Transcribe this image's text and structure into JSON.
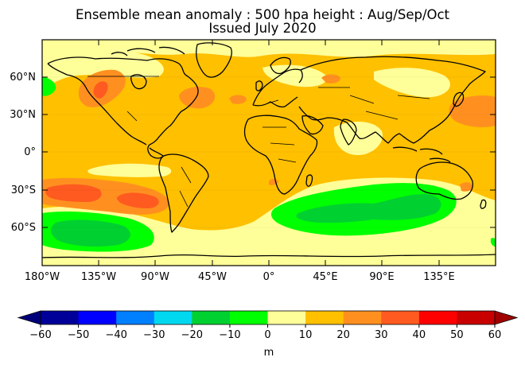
{
  "title": "Ensemble mean anomaly : 500 hpa height : Aug/Sep/Oct",
  "subtitle": "Issued July 2020",
  "map": {
    "projection": "equirectangular",
    "lat_ticks": [
      "60°N",
      "30°N",
      "0°",
      "30°S",
      "60°S"
    ],
    "lon_ticks": [
      "180°W",
      "135°W",
      "90°W",
      "45°W",
      "0°",
      "45°E",
      "90°E",
      "135°E"
    ],
    "background_level_color": "#ffc000",
    "anomaly_regions": [
      {
        "region": "North Pacific / western Canada",
        "range": "20 to 40",
        "colors": [
          "#ff9020",
          "#ff5a20"
        ]
      },
      {
        "region": "North Atlantic near Newfoundland",
        "range": "20 to 30",
        "colors": [
          "#ff9020"
        ]
      },
      {
        "region": "Southern Pacific 30°S–45°S",
        "range": "20 to 40",
        "colors": [
          "#ff9020",
          "#ff5a20"
        ]
      },
      {
        "region": "Southern Ocean south of South America",
        "range": "-20 to -10",
        "colors": [
          "#00ff00",
          "#00d030"
        ]
      },
      {
        "region": "Southern Ocean south of Africa/Australia",
        "range": "-20 to -10",
        "colors": [
          "#00ff00",
          "#00d030"
        ]
      },
      {
        "region": "Equatorial Pacific and Indian Ocean",
        "range": "0 to 10",
        "colors": [
          "#ffff99"
        ]
      },
      {
        "region": "West Pacific near Asia",
        "range": "20 to 30",
        "colors": [
          "#ff9020"
        ]
      }
    ]
  },
  "colorbar": {
    "levels": [
      "-60",
      "-50",
      "-40",
      "-30",
      "-20",
      "-10",
      "0",
      "10",
      "20",
      "30",
      "40",
      "50",
      "60"
    ],
    "colors": [
      "#000099",
      "#0000ff",
      "#0080ff",
      "#00d8f0",
      "#00d030",
      "#00ff00",
      "#ffff99",
      "#ffc000",
      "#ff9020",
      "#ff5a20",
      "#ff0000",
      "#c80000"
    ],
    "under_color": "#00007a",
    "over_color": "#a00000",
    "unit": "m"
  }
}
